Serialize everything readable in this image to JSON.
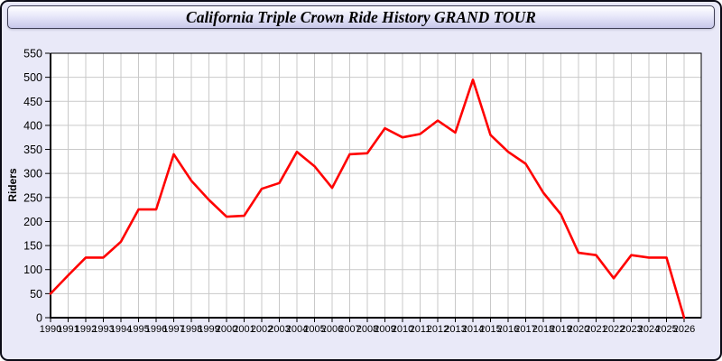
{
  "window": {
    "title": "California Triple Crown Ride History GRAND TOUR"
  },
  "theme": {
    "body_bg": "#e9e9f8",
    "titlebar_gradient_top": "#ffffff",
    "titlebar_gradient_bottom": "#c7c7ea",
    "border_color": "#0b0b16",
    "line_color": "#ff0000"
  },
  "chart_data": {
    "type": "line",
    "title": "California Triple Crown Ride History GRAND TOUR",
    "xlabel": "",
    "ylabel": "Riders",
    "x": [
      1990,
      1991,
      1992,
      1993,
      1994,
      1995,
      1996,
      1997,
      1998,
      1999,
      2000,
      2001,
      2002,
      2003,
      2004,
      2005,
      2006,
      2007,
      2008,
      2009,
      2010,
      2011,
      2012,
      2013,
      2014,
      2015,
      2016,
      2017,
      2018,
      2019,
      2020,
      2021,
      2022,
      2023,
      2024,
      2025,
      2026
    ],
    "series_name": "Riders",
    "values": [
      50,
      88,
      125,
      125,
      158,
      225,
      225,
      340,
      285,
      245,
      210,
      212,
      268,
      280,
      345,
      315,
      270,
      340,
      342,
      394,
      375,
      382,
      410,
      385,
      495,
      380,
      345,
      320,
      260,
      215,
      135,
      130,
      82,
      130,
      125,
      125,
      0
    ],
    "ylim": [
      0,
      550
    ],
    "ytick_step": 50,
    "xtick_step": 1,
    "grid": true,
    "legend": "none",
    "plot_bg": "#ffffff",
    "grid_color": "#c9c9c9",
    "axis_color": "#000000",
    "line_color": "#ff0000"
  }
}
